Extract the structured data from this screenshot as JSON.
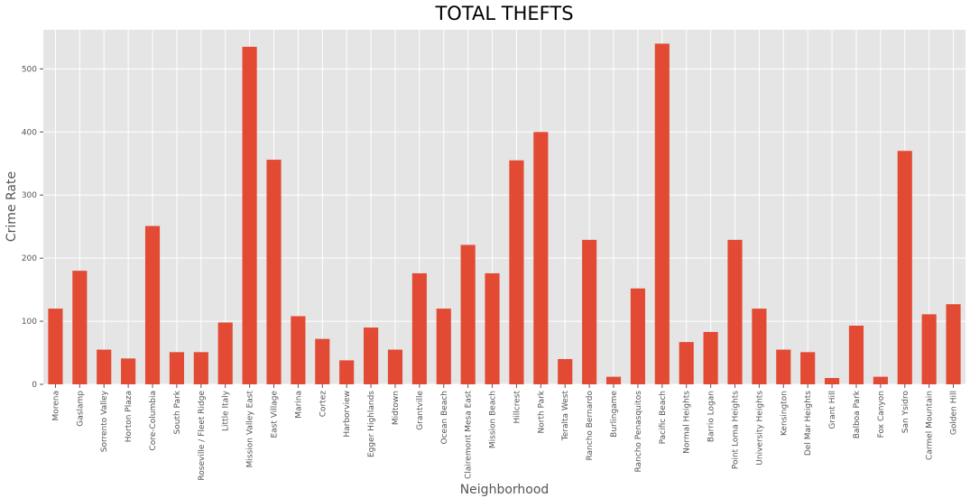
{
  "chart_data": {
    "type": "bar",
    "title": "TOTAL THEFTS",
    "xlabel": "Neighborhood",
    "ylabel": "Crime Rate",
    "ylim": [
      0,
      562
    ],
    "yticks": [
      0,
      100,
      200,
      300,
      400,
      500
    ],
    "grid": true,
    "bar_color": "#E24A33",
    "background_color": "#E5E5E5",
    "grid_color": "#FFFFFF",
    "categories": [
      "Morena",
      "Gaslamp",
      "Sorrento Valley",
      "Horton Plaza",
      "Core-Columbia",
      "South Park",
      "Roseville / Fleet Ridge",
      "Little Italy",
      "Mission Valley East",
      "East Village",
      "Marina",
      "Cortez",
      "Harborview",
      "Egger Highlands",
      "Midtown",
      "Grantville",
      "Ocean Beach",
      "Clairemont Mesa East",
      "Mission Beach",
      "Hillcrest",
      "North Park",
      "Teralta West",
      "Rancho Bernardo",
      "Burlingame",
      "Rancho Penasquitos",
      "Pacific Beach",
      "Normal Heights",
      "Barrio Logan",
      "Point Loma Heights",
      "University Heights",
      "Kensington",
      "Del Mar Heights",
      "Grant Hill",
      "Balboa Park",
      "Fox Canyon",
      "San Ysidro",
      "Carmel Mountain",
      "Golden Hill"
    ],
    "values": [
      120,
      180,
      55,
      41,
      251,
      51,
      51,
      98,
      535,
      356,
      108,
      72,
      38,
      90,
      55,
      176,
      120,
      221,
      176,
      355,
      400,
      40,
      229,
      12,
      152,
      540,
      67,
      83,
      229,
      120,
      55,
      51,
      10,
      93,
      12,
      370,
      111,
      127
    ]
  }
}
